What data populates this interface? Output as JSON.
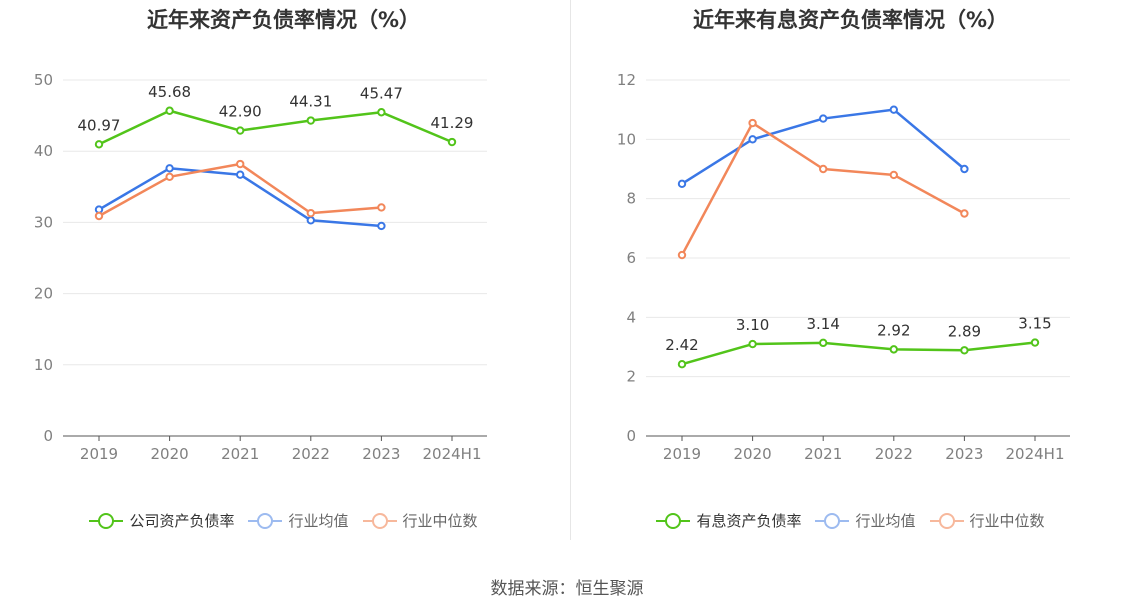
{
  "source": "数据来源：恒生聚源",
  "chart_data": [
    {
      "type": "line",
      "title": "近年来资产负债率情况（%）",
      "categories": [
        "2019",
        "2020",
        "2021",
        "2022",
        "2023",
        "2024H1"
      ],
      "ylim": [
        0,
        50
      ],
      "yticks": [
        "0",
        "10",
        "20",
        "30",
        "40",
        "50"
      ],
      "grid": true,
      "legend_position": "bottom",
      "series": [
        {
          "name": "公司资产负债率",
          "color": "#52c41a",
          "values": [
            40.97,
            45.68,
            42.9,
            44.31,
            45.47,
            41.29
          ],
          "labels": [
            "40.97",
            "45.68",
            "42.90",
            "44.31",
            "45.47",
            "41.29"
          ]
        },
        {
          "name": "行业均值",
          "color": "#3a77e6",
          "values": [
            31.8,
            37.6,
            36.7,
            30.3,
            29.5,
            null
          ]
        },
        {
          "name": "行业中位数",
          "color": "#f2875a",
          "values": [
            30.9,
            36.4,
            38.2,
            31.3,
            32.1,
            null
          ]
        }
      ]
    },
    {
      "type": "line",
      "title": "近年来有息资产负债率情况（%）",
      "categories": [
        "2019",
        "2020",
        "2021",
        "2022",
        "2023",
        "2024H1"
      ],
      "ylim": [
        0,
        12
      ],
      "yticks": [
        "0",
        "2",
        "4",
        "6",
        "8",
        "10",
        "12"
      ],
      "grid": true,
      "legend_position": "bottom",
      "series": [
        {
          "name": "有息资产负债率",
          "color": "#52c41a",
          "values": [
            2.42,
            3.1,
            3.14,
            2.92,
            2.89,
            3.15
          ],
          "labels": [
            "2.42",
            "3.10",
            "3.14",
            "2.92",
            "2.89",
            "3.15"
          ]
        },
        {
          "name": "行业均值",
          "color": "#3a77e6",
          "values": [
            8.5,
            10.0,
            10.7,
            11.0,
            9.0,
            null
          ]
        },
        {
          "name": "行业中位数",
          "color": "#f2875a",
          "values": [
            6.1,
            10.55,
            9.0,
            8.8,
            7.5,
            null
          ]
        }
      ]
    }
  ]
}
